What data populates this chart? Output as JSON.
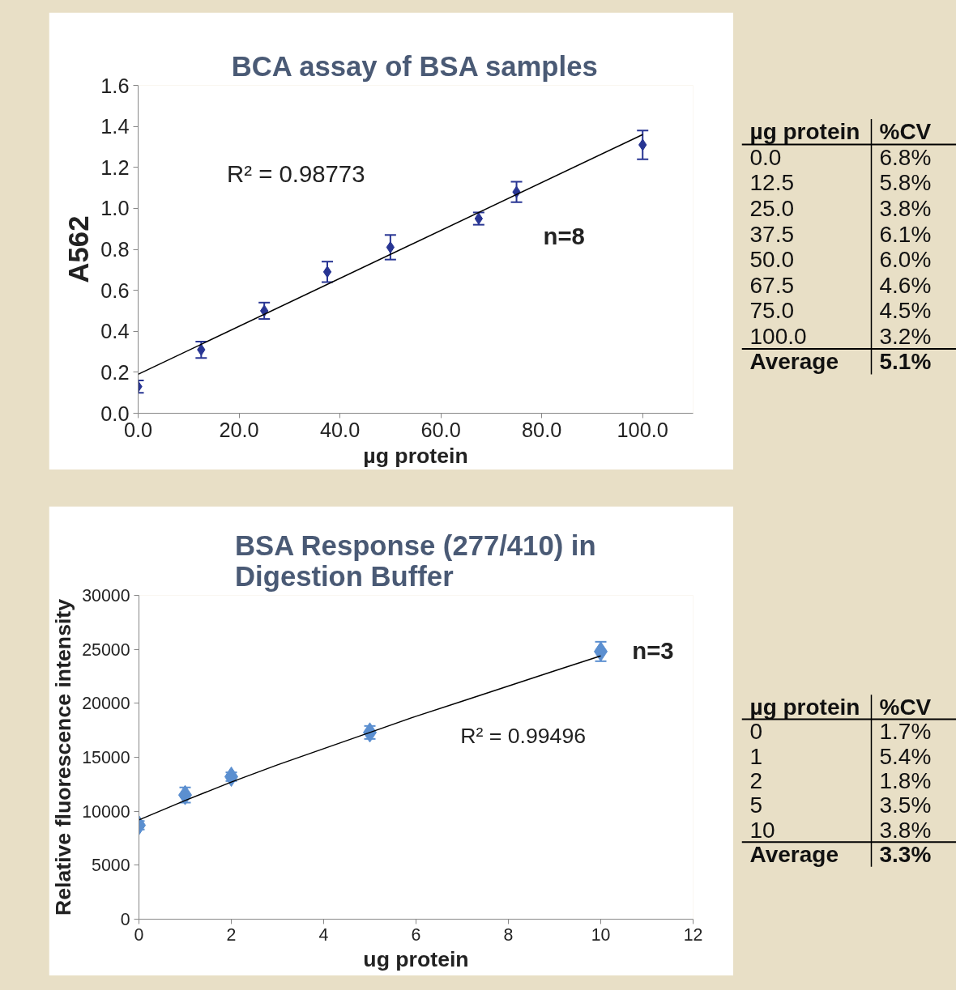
{
  "chart_data": [
    {
      "type": "scatter",
      "title": "BCA assay of BSA samples",
      "xlabel": "µg protein",
      "ylabel": "A562",
      "x": [
        0,
        12.5,
        25,
        37.5,
        50,
        67.5,
        75,
        100
      ],
      "series": [
        {
          "type": "scatter",
          "marker": "diamond",
          "color": "#283593",
          "values": [
            0.13,
            0.31,
            0.5,
            0.69,
            0.81,
            0.95,
            1.08,
            1.31
          ],
          "errors": [
            0.03,
            0.04,
            0.04,
            0.05,
            0.06,
            0.03,
            0.05,
            0.07
          ]
        },
        {
          "type": "line",
          "color": "#000000",
          "x": [
            0,
            100
          ],
          "values": [
            0.19,
            1.36
          ]
        }
      ],
      "xlim": [
        0,
        110
      ],
      "ylim": [
        0,
        1.6
      ],
      "xticks": [
        {
          "value": 0,
          "label": "0.0"
        },
        {
          "value": 20,
          "label": "20.0"
        },
        {
          "value": 40,
          "label": "40.0"
        },
        {
          "value": 60,
          "label": "60.0"
        },
        {
          "value": 80,
          "label": "80.0"
        },
        {
          "value": 100,
          "label": "100.0"
        }
      ],
      "yticks": [
        {
          "value": 0,
          "label": "0.0"
        },
        0.2,
        0.4,
        0.6,
        0.8,
        {
          "value": 1,
          "label": "1.0"
        },
        1.2,
        1.4,
        1.6
      ],
      "grid": false,
      "legend": false,
      "annotations": [
        "R² = 0.98773",
        "n=8"
      ]
    },
    {
      "type": "other",
      "annotations": [
        "µg protein",
        "%CV"
      ],
      "categories": [
        "0.0",
        "12.5",
        "25.0",
        "37.5",
        "50.0",
        "67.5",
        "75.0",
        "100.0",
        "Average"
      ],
      "value_labels": [
        "6.8%",
        "5.8%",
        "3.8%",
        "6.1%",
        "6.0%",
        "4.6%",
        "4.5%",
        "3.2%",
        "5.1%"
      ]
    },
    {
      "type": "scatter",
      "title": "BSA Response (277/410) in Digestion Buffer",
      "xlabel": "ug protein",
      "ylabel": "Relative fluorescence intensity",
      "x": [
        0,
        1,
        2,
        5,
        10
      ],
      "series": [
        {
          "type": "scatter",
          "marker": "diamond",
          "color": "#5b8fd0",
          "values": [
            8700,
            11500,
            13200,
            17300,
            24800
          ],
          "errors": [
            400,
            700,
            400,
            600,
            900
          ]
        },
        {
          "type": "line",
          "color": "#000000",
          "x": [
            0,
            1,
            2,
            3,
            4,
            5,
            6,
            7,
            8,
            9,
            10
          ],
          "values": [
            9200,
            11000,
            12700,
            14300,
            15800,
            17300,
            18800,
            20200,
            21600,
            23000,
            24400
          ]
        }
      ],
      "xlim": [
        0,
        12
      ],
      "ylim": [
        0,
        30000
      ],
      "xticks": [
        0,
        2,
        4,
        6,
        8,
        10,
        12
      ],
      "yticks": [
        0,
        5000,
        10000,
        15000,
        20000,
        25000,
        30000
      ],
      "grid": false,
      "legend": false,
      "annotations": [
        "R² = 0.99496",
        "n=3"
      ]
    },
    {
      "type": "other",
      "annotations": [
        "µg protein",
        "%CV"
      ],
      "categories": [
        "0",
        "1",
        "2",
        "5",
        "10",
        "Average"
      ],
      "value_labels": [
        "1.7%",
        "5.4%",
        "1.8%",
        "3.5%",
        "3.8%",
        "3.3%"
      ]
    }
  ]
}
